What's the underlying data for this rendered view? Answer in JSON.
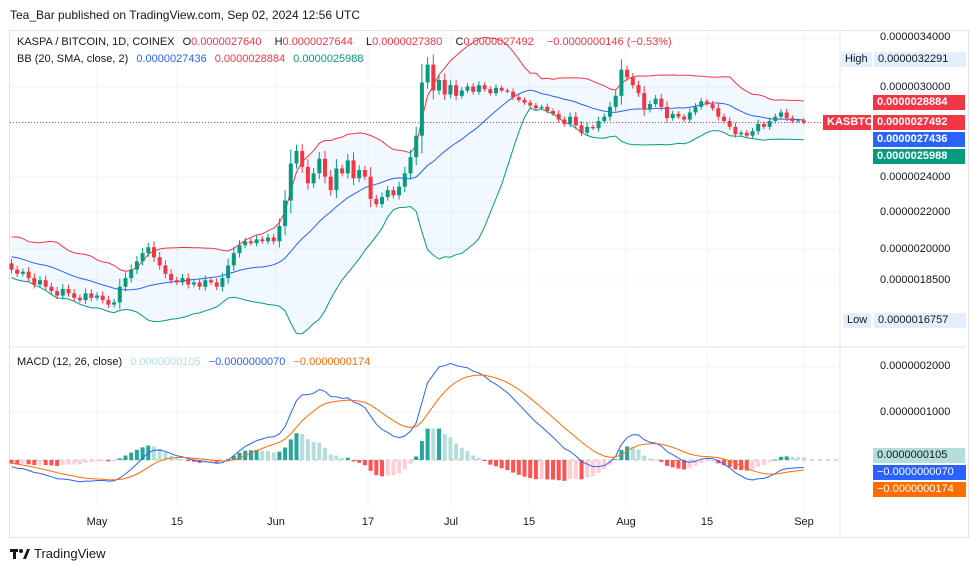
{
  "published": "Tea_Bar published on TradingView.com, Sep 02, 2024 12:56 UTC",
  "symbol": {
    "title": "KASPA / BITCOIN, 1D, COINEX",
    "o_label": "O",
    "o": "0.0000027640",
    "h_label": "H",
    "h": "0.0000027644",
    "l_label": "L",
    "l": "0.0000027380",
    "c_label": "C",
    "c": "0.0000027492",
    "change": "−0.0000000146 (−0.53%)"
  },
  "bb": {
    "title": "BB (20, SMA, close, 2)",
    "basis": "0.0000027436",
    "upper": "0.0000028884",
    "lower": "0.0000025988"
  },
  "macd": {
    "title": "MACD (12, 26, close)",
    "hist": "0.0000000105",
    "macd": "−0.0000000070",
    "signal": "−0.0000000174"
  },
  "price_axis": [
    "0.0000034000",
    "0.0000030000",
    "0.0000024000",
    "0.0000022000",
    "0.0000020000",
    "0.0000018500"
  ],
  "macd_axis": [
    "0.0000002000",
    "0.0000001000"
  ],
  "high": {
    "label": "High",
    "value": "0.0000032291"
  },
  "low": {
    "label": "Low",
    "value": "0.0000016757"
  },
  "ticker_label": "KASBTC",
  "price_labels": {
    "upper": "0.0000028884",
    "last": "0.0000027492",
    "basis": "0.0000027436",
    "lower": "0.0000025988"
  },
  "macd_labels": {
    "hist": "0.0000000105",
    "macd": "−0.0000000070",
    "signal": "−0.0000000174"
  },
  "time_axis": [
    "May",
    "15",
    "Jun",
    "17",
    "Jul",
    "15",
    "Aug",
    "15",
    "Sep"
  ],
  "brand": "TradingView",
  "colors": {
    "up": "#089981",
    "down": "#f23645",
    "basis": "#2962ff",
    "signal": "#ff6d00"
  },
  "chart_data": {
    "type": "candlestick",
    "units": "1e-10 BTC",
    "start_date": "2024-04-16",
    "warmup_closes": [
      19500,
      19800,
      20300,
      20600,
      20100,
      19700,
      19200,
      19500,
      20000,
      20400,
      20200,
      19800,
      19400,
      19000,
      19300,
      19600,
      19200,
      18900,
      19100,
      19300
    ],
    "closes": [
      19000,
      18800,
      18900,
      18600,
      18300,
      18500,
      18200,
      18000,
      17800,
      18100,
      17900,
      17700,
      17600,
      17900,
      17700,
      17800,
      17600,
      17400,
      17500,
      18200,
      18600,
      19000,
      19400,
      19800,
      20100,
      19600,
      19200,
      18800,
      18500,
      18400,
      18600,
      18300,
      18400,
      18200,
      18500,
      18400,
      18200,
      18600,
      19200,
      19800,
      20200,
      20400,
      20300,
      20500,
      20400,
      20600,
      20400,
      21200,
      22600,
      24800,
      25600,
      24600,
      23600,
      24200,
      25100,
      24000,
      23200,
      24500,
      24200,
      25000,
      23900,
      24400,
      24000,
      22700,
      22400,
      22800,
      23200,
      22900,
      23400,
      24200,
      25200,
      26600,
      30400,
      31800,
      29800,
      30600,
      29500,
      30200,
      29400,
      29800,
      30100,
      29700,
      30200,
      29900,
      29600,
      30000,
      29800,
      29700,
      29300,
      29100,
      28900,
      28700,
      28500,
      28600,
      28300,
      28100,
      27700,
      27400,
      27900,
      27300,
      26800,
      27200,
      27100,
      27600,
      27900,
      28600,
      29400,
      31400,
      30800,
      30200,
      29600,
      28400,
      28800,
      29200,
      28600,
      27800,
      28100,
      27900,
      27700,
      28200,
      28600,
      29000,
      28800,
      28500,
      27900,
      27600,
      27200,
      26700,
      26800,
      26600,
      26900,
      27400,
      27200,
      27600,
      27900,
      28200,
      27800,
      27600,
      27640,
      27492
    ]
  }
}
